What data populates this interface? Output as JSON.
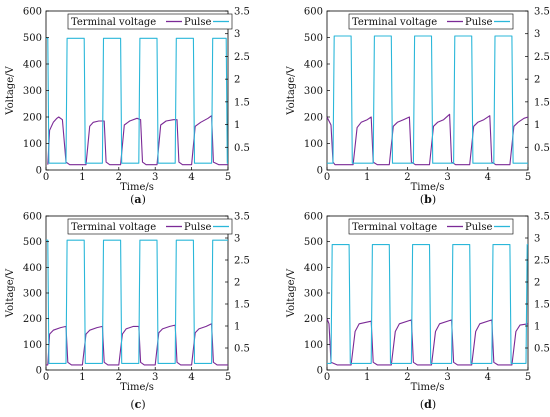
{
  "chart_data": [
    {
      "type": "line",
      "caption": "(a)",
      "xlabel": "Time/s",
      "ylabel": "Voltage/V",
      "xlim": [
        0,
        5
      ],
      "ylim": [
        0,
        600
      ],
      "y2lim": [
        0,
        3.5
      ],
      "x_ticks": [
        "0",
        "1",
        "2",
        "3",
        "4",
        "5"
      ],
      "y_ticks": [
        "0",
        "100",
        "200",
        "300",
        "400",
        "500",
        "600"
      ],
      "y2_ticks": [
        "0.5",
        "1",
        "1.5",
        "2",
        "2.5",
        "3",
        "3.5"
      ],
      "legend": [
        "Terminal voltage",
        "Pulse"
      ],
      "legend_position": "top",
      "colors": {
        "terminal": "#7b2a96",
        "pulse": "#2bb7d9"
      },
      "series": [
        {
          "name": "Terminal voltage",
          "axis": "left",
          "x": [
            0.05,
            0.1,
            0.2,
            0.3,
            0.35,
            0.45,
            0.55,
            0.65,
            0.75,
            1.1,
            1.2,
            1.3,
            1.45,
            1.6,
            1.65,
            1.75,
            2.05,
            2.15,
            2.3,
            2.5,
            2.6,
            2.65,
            2.75,
            3.05,
            3.15,
            3.3,
            3.5,
            3.6,
            3.65,
            3.75,
            4.0,
            4.1,
            4.25,
            4.45,
            4.55,
            4.6,
            4.75,
            5.0
          ],
          "y": [
            20,
            150,
            180,
            195,
            200,
            190,
            30,
            20,
            20,
            20,
            165,
            180,
            185,
            185,
            30,
            20,
            20,
            170,
            185,
            195,
            190,
            30,
            20,
            20,
            170,
            185,
            190,
            190,
            30,
            20,
            20,
            165,
            180,
            195,
            205,
            30,
            20,
            20
          ]
        },
        {
          "name": "Pulse",
          "axis": "right",
          "x": [
            0,
            0.05,
            0.08,
            0.55,
            0.58,
            1.05,
            1.08,
            1.55,
            1.58,
            2.05,
            2.08,
            2.55,
            2.58,
            3.05,
            3.08,
            3.55,
            3.58,
            4.05,
            4.08,
            4.55,
            4.58,
            4.95,
            4.98,
            5.0
          ],
          "y": [
            2.9,
            2.9,
            0.15,
            0.15,
            2.9,
            2.9,
            0.15,
            0.15,
            2.9,
            2.9,
            0.15,
            0.15,
            2.9,
            2.9,
            0.15,
            0.15,
            2.9,
            2.9,
            0.15,
            0.15,
            2.9,
            2.9,
            0.15,
            0.15
          ]
        }
      ]
    },
    {
      "type": "line",
      "caption": "(b)",
      "xlabel": "Time/s",
      "ylabel": "Voltage/V",
      "xlim": [
        0,
        5
      ],
      "ylim": [
        0,
        600
      ],
      "y2lim": [
        0,
        3.5
      ],
      "x_ticks": [
        "0",
        "1",
        "2",
        "3",
        "4",
        "5"
      ],
      "y_ticks": [
        "0",
        "100",
        "200",
        "300",
        "400",
        "500",
        "600"
      ],
      "y2_ticks": [
        "0.5",
        "1",
        "1.5",
        "2",
        "2.5",
        "3",
        "3.5"
      ],
      "legend": [
        "Terminal voltage",
        "Pulse"
      ],
      "legend_position": "top",
      "colors": {
        "terminal": "#7b2a96",
        "pulse": "#2bb7d9"
      },
      "series": [
        {
          "name": "Terminal voltage",
          "axis": "left",
          "x": [
            0,
            0.1,
            0.15,
            0.2,
            0.3,
            0.35,
            0.65,
            0.75,
            0.85,
            1.0,
            1.1,
            1.15,
            1.25,
            1.55,
            1.65,
            1.75,
            1.9,
            2.05,
            2.1,
            2.2,
            2.55,
            2.65,
            2.75,
            2.9,
            3.05,
            3.1,
            3.2,
            3.55,
            3.65,
            3.75,
            3.9,
            4.05,
            4.1,
            4.2,
            4.55,
            4.65,
            4.75,
            4.9,
            5.0
          ],
          "y": [
            200,
            170,
            30,
            20,
            20,
            20,
            20,
            160,
            180,
            190,
            200,
            30,
            20,
            20,
            165,
            180,
            190,
            200,
            30,
            20,
            20,
            165,
            180,
            190,
            210,
            30,
            20,
            20,
            165,
            180,
            190,
            205,
            30,
            20,
            20,
            165,
            180,
            195,
            200
          ]
        },
        {
          "name": "Pulse",
          "axis": "right",
          "x": [
            0,
            0.15,
            0.18,
            0.6,
            0.63,
            1.15,
            1.18,
            1.6,
            1.63,
            2.15,
            2.18,
            2.6,
            2.63,
            3.15,
            3.18,
            3.6,
            3.63,
            4.15,
            4.18,
            4.6,
            4.63,
            5.0
          ],
          "y": [
            0.15,
            0.15,
            2.95,
            2.95,
            0.15,
            0.15,
            2.95,
            2.95,
            0.15,
            0.15,
            2.95,
            2.95,
            0.15,
            0.15,
            2.95,
            2.95,
            0.15,
            0.15,
            2.95,
            2.95,
            0.15,
            0.15
          ]
        }
      ]
    },
    {
      "type": "line",
      "caption": "(c)",
      "xlabel": "Time/s",
      "ylabel": "Voltage/V",
      "xlim": [
        0,
        5
      ],
      "ylim": [
        0,
        600
      ],
      "y2lim": [
        0,
        3.5
      ],
      "x_ticks": [
        "0",
        "1",
        "2",
        "3",
        "4",
        "5"
      ],
      "y_ticks": [
        "0",
        "100",
        "200",
        "300",
        "400",
        "500",
        "600"
      ],
      "y2_ticks": [
        "0.5",
        "1",
        "1.5",
        "2",
        "2.5",
        "3",
        "3.5"
      ],
      "legend": [
        "Terminal voltage",
        "Pulse"
      ],
      "legend_position": "top",
      "colors": {
        "terminal": "#7b2a96",
        "pulse": "#2bb7d9"
      },
      "series": [
        {
          "name": "Terminal voltage",
          "axis": "left",
          "x": [
            0,
            0.05,
            0.1,
            0.2,
            0.4,
            0.55,
            0.6,
            0.7,
            1.0,
            1.1,
            1.2,
            1.4,
            1.55,
            1.6,
            1.7,
            2.0,
            2.1,
            2.2,
            2.4,
            2.55,
            2.6,
            2.7,
            3.0,
            3.1,
            3.2,
            3.4,
            3.55,
            3.6,
            3.7,
            4.0,
            4.1,
            4.2,
            4.4,
            4.55,
            4.6,
            4.7,
            5.0
          ],
          "y": [
            20,
            20,
            140,
            155,
            165,
            170,
            30,
            20,
            20,
            140,
            155,
            165,
            170,
            30,
            20,
            20,
            140,
            160,
            170,
            170,
            30,
            20,
            20,
            145,
            160,
            170,
            175,
            30,
            20,
            20,
            145,
            160,
            170,
            180,
            30,
            20,
            20
          ]
        },
        {
          "name": "Pulse",
          "axis": "right",
          "x": [
            0,
            0.05,
            0.08,
            0.55,
            0.58,
            1.05,
            1.08,
            1.55,
            1.58,
            2.05,
            2.08,
            2.55,
            2.58,
            3.05,
            3.08,
            3.55,
            3.58,
            4.05,
            4.08,
            4.55,
            4.58,
            5.0
          ],
          "y": [
            2.95,
            2.95,
            0.15,
            0.15,
            2.95,
            2.95,
            0.15,
            0.15,
            2.95,
            2.95,
            0.15,
            0.15,
            2.95,
            2.95,
            0.15,
            0.15,
            2.95,
            2.95,
            0.15,
            0.15,
            2.95,
            2.95
          ]
        }
      ]
    },
    {
      "type": "line",
      "caption": "(d)",
      "xlabel": "Time/s",
      "ylabel": "Voltage/V",
      "xlim": [
        0,
        5
      ],
      "ylim": [
        0,
        600
      ],
      "y2lim": [
        0,
        3.5
      ],
      "x_ticks": [
        "0",
        "1",
        "2",
        "3",
        "4",
        "5"
      ],
      "y_ticks": [
        "0",
        "100",
        "200",
        "300",
        "400",
        "500",
        "600"
      ],
      "y2_ticks": [
        "0.5",
        "1",
        "1.5",
        "2",
        "2.5",
        "3",
        "3.5"
      ],
      "legend": [
        "Terminal voltage",
        "Pulse"
      ],
      "legend_position": "top",
      "colors": {
        "terminal": "#7b2a96",
        "pulse": "#2bb7d9"
      },
      "series": [
        {
          "name": "Terminal voltage",
          "axis": "left",
          "x": [
            0,
            0.05,
            0.1,
            0.25,
            0.6,
            0.7,
            0.8,
            1.1,
            1.15,
            1.25,
            1.6,
            1.7,
            1.8,
            2.1,
            2.15,
            2.25,
            2.6,
            2.7,
            2.8,
            3.1,
            3.15,
            3.25,
            3.6,
            3.7,
            3.8,
            4.1,
            4.15,
            4.25,
            4.6,
            4.7,
            4.8,
            5.0
          ],
          "y": [
            200,
            180,
            30,
            20,
            20,
            150,
            180,
            190,
            30,
            20,
            20,
            150,
            180,
            195,
            30,
            20,
            20,
            150,
            180,
            195,
            30,
            20,
            20,
            150,
            180,
            195,
            30,
            20,
            20,
            150,
            175,
            180
          ]
        },
        {
          "name": "Pulse",
          "axis": "right",
          "x": [
            0,
            0.1,
            0.13,
            0.55,
            0.58,
            1.1,
            1.13,
            1.55,
            1.58,
            2.1,
            2.13,
            2.55,
            2.58,
            3.1,
            3.13,
            3.55,
            3.58,
            4.1,
            4.13,
            4.55,
            4.58,
            4.95,
            4.98,
            5.0
          ],
          "y": [
            0.15,
            0.15,
            2.85,
            2.85,
            0.15,
            0.15,
            2.85,
            2.85,
            0.15,
            0.15,
            2.85,
            2.85,
            0.15,
            0.15,
            2.85,
            2.85,
            0.15,
            0.15,
            2.85,
            2.85,
            0.15,
            0.15,
            2.85,
            2.85
          ]
        }
      ]
    }
  ]
}
